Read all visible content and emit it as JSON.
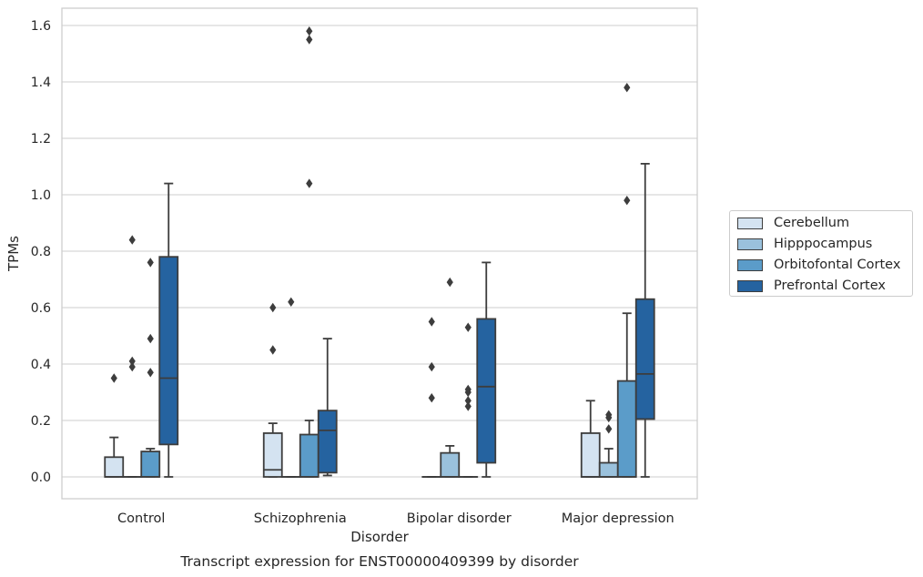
{
  "chart_data": {
    "type": "boxplot",
    "caption": "Transcript expression for ENST00000409399 by disorder",
    "xlabel": "Disorder",
    "ylabel": "TPMs",
    "ylim": [
      -0.08,
      1.66
    ],
    "yticks": [
      "0.0",
      "0.2",
      "0.4",
      "0.6",
      "0.8",
      "1.0",
      "1.2",
      "1.4",
      "1.6"
    ],
    "grid": "horizontal",
    "legend_position": "outside-right",
    "categories": [
      "Control",
      "Schizophrenia",
      "Bipolar disorder",
      "Major depression"
    ],
    "series": [
      {
        "name": "Cerebellum",
        "color": "#d4e3f1",
        "boxes": [
          {
            "min": 0,
            "q1": 0,
            "median": 0,
            "q3": 0.07,
            "max": 0.14,
            "outliers": [
              0.35
            ]
          },
          {
            "min": 0,
            "q1": 0,
            "median": 0.025,
            "q3": 0.155,
            "max": 0.19,
            "outliers": [
              0.45,
              0.6
            ]
          },
          {
            "min": 0,
            "q1": 0,
            "median": 0,
            "q3": 0,
            "max": 0,
            "outliers": [
              0.28,
              0.39,
              0.55
            ]
          },
          {
            "min": 0,
            "q1": 0,
            "median": 0,
            "q3": 0.155,
            "max": 0.27,
            "outliers": []
          }
        ]
      },
      {
        "name": "Hipppocampus",
        "color": "#9ac1dc",
        "boxes": [
          {
            "min": 0,
            "q1": 0,
            "median": 0,
            "q3": 0,
            "max": 0,
            "outliers": [
              0.39,
              0.41,
              0.84
            ]
          },
          {
            "min": 0,
            "q1": 0,
            "median": 0,
            "q3": 0,
            "max": 0,
            "outliers": [
              0.62
            ]
          },
          {
            "min": 0,
            "q1": 0,
            "median": 0,
            "q3": 0.085,
            "max": 0.11,
            "outliers": [
              0.69
            ]
          },
          {
            "min": 0,
            "q1": 0,
            "median": 0,
            "q3": 0.05,
            "max": 0.1,
            "outliers": [
              0.17,
              0.21,
              0.22
            ]
          }
        ]
      },
      {
        "name": "Orbitofontal Cortex",
        "color": "#5b9cc9",
        "boxes": [
          {
            "min": 0,
            "q1": 0,
            "median": 0,
            "q3": 0.09,
            "max": 0.1,
            "outliers": [
              0.37,
              0.49,
              0.76
            ]
          },
          {
            "min": 0,
            "q1": 0,
            "median": 0,
            "q3": 0.15,
            "max": 0.2,
            "outliers": [
              1.04,
              1.55,
              1.58
            ]
          },
          {
            "min": 0,
            "q1": 0,
            "median": 0,
            "q3": 0,
            "max": 0,
            "outliers": [
              0.25,
              0.27,
              0.3,
              0.31,
              0.53
            ]
          },
          {
            "min": 0,
            "q1": 0,
            "median": 0,
            "q3": 0.34,
            "max": 0.58,
            "outliers": [
              0.98,
              1.38
            ]
          }
        ]
      },
      {
        "name": "Prefrontal Cortex",
        "color": "#2563a0",
        "boxes": [
          {
            "min": 0,
            "q1": 0.115,
            "median": 0.35,
            "q3": 0.78,
            "max": 1.04,
            "outliers": []
          },
          {
            "min": 0.005,
            "q1": 0.015,
            "median": 0.165,
            "q3": 0.235,
            "max": 0.49,
            "outliers": []
          },
          {
            "min": 0,
            "q1": 0.05,
            "median": 0.32,
            "q3": 0.56,
            "max": 0.76,
            "outliers": []
          },
          {
            "min": 0,
            "q1": 0.205,
            "median": 0.365,
            "q3": 0.63,
            "max": 1.11,
            "outliers": []
          }
        ]
      }
    ]
  }
}
